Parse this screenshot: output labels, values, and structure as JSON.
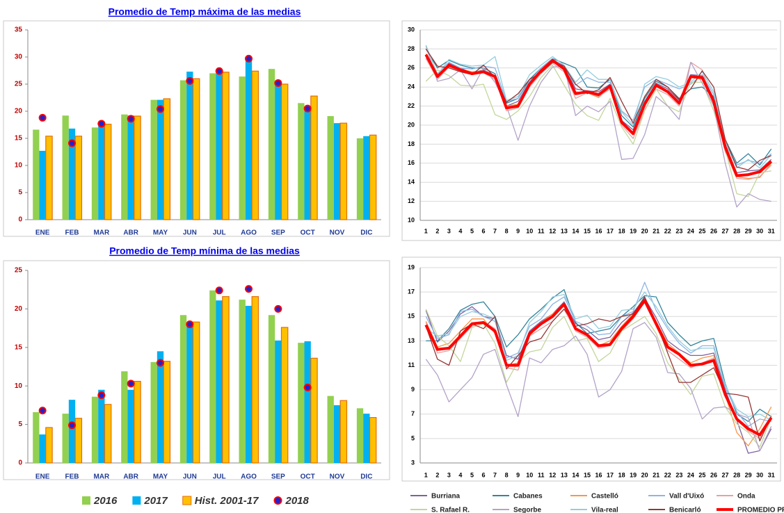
{
  "chart_data": [
    {
      "type": "bar",
      "title": "Promedio de Temp máxima de las medias",
      "categories": [
        "ENE",
        "FEB",
        "MAR",
        "ABR",
        "MAY",
        "JUN",
        "JUL",
        "AGO",
        "SEP",
        "OCT",
        "NOV",
        "DIC"
      ],
      "ylim": [
        0,
        35
      ],
      "yticks": [
        0,
        5,
        10,
        15,
        20,
        25,
        30,
        35
      ],
      "legend": true,
      "series": [
        {
          "name": "2016",
          "color": "#92d050",
          "values": [
            16.6,
            19.2,
            17.0,
            19.4,
            22.1,
            25.7,
            27.0,
            26.4,
            27.8,
            21.5,
            19.1,
            15.0
          ]
        },
        {
          "name": "2017",
          "color": "#00b0f0",
          "values": [
            12.7,
            16.8,
            17.6,
            19.2,
            22.1,
            27.3,
            27.5,
            29.5,
            25.5,
            20.7,
            17.8,
            15.4
          ]
        },
        {
          "name": "Hist. 2001-17",
          "color": "#ffc000",
          "edgecolor": "#e46c0a",
          "values": [
            15.4,
            15.4,
            17.6,
            19.1,
            22.3,
            26.0,
            27.2,
            27.4,
            25.0,
            22.8,
            17.8,
            15.6
          ]
        },
        {
          "name": "2018",
          "color": "#2222cc",
          "edgecolor": "#ff0000",
          "marker": "dot",
          "values": [
            18.8,
            14.1,
            17.7,
            18.6,
            20.4,
            25.6,
            27.4,
            29.7,
            25.2,
            20.5,
            null,
            null
          ]
        }
      ]
    },
    {
      "type": "bar",
      "title": "Promedio de Temp mínima de las medias",
      "categories": [
        "ENE",
        "FEB",
        "MAR",
        "ABR",
        "MAY",
        "JUN",
        "JUL",
        "AGO",
        "SEP",
        "OCT",
        "NOV",
        "DIC"
      ],
      "ylim": [
        0,
        25
      ],
      "yticks": [
        0,
        5,
        10,
        15,
        20,
        25
      ],
      "legend": false,
      "series": [
        {
          "name": "2016",
          "color": "#92d050",
          "values": [
            6.6,
            6.4,
            8.6,
            11.9,
            13.1,
            19.2,
            22.4,
            21.2,
            19.2,
            15.6,
            8.7,
            7.1
          ]
        },
        {
          "name": "2017",
          "color": "#00b0f0",
          "values": [
            3.7,
            8.2,
            9.5,
            9.5,
            14.5,
            18.3,
            21.1,
            20.4,
            15.9,
            15.8,
            7.5,
            6.4
          ]
        },
        {
          "name": "Hist. 2001-17",
          "color": "#ffc000",
          "edgecolor": "#e46c0a",
          "values": [
            4.6,
            5.8,
            7.6,
            10.6,
            13.2,
            18.3,
            21.6,
            21.6,
            17.6,
            13.6,
            8.1,
            5.9
          ]
        },
        {
          "name": "2018",
          "color": "#2222cc",
          "edgecolor": "#ff0000",
          "marker": "dot",
          "values": [
            6.8,
            4.9,
            8.8,
            10.3,
            13.0,
            18.0,
            22.4,
            22.6,
            20.0,
            9.8,
            null,
            null
          ]
        }
      ]
    },
    {
      "type": "line",
      "x": [
        1,
        2,
        3,
        4,
        5,
        6,
        7,
        8,
        9,
        10,
        11,
        12,
        13,
        14,
        15,
        16,
        17,
        18,
        19,
        20,
        21,
        22,
        23,
        24,
        25,
        26,
        27,
        28,
        29,
        30,
        31
      ],
      "ylim": [
        10,
        30
      ],
      "yticks": [
        10,
        12,
        14,
        16,
        18,
        20,
        22,
        24,
        26,
        28,
        30
      ],
      "grid": true,
      "legend": true,
      "series": [
        {
          "name": "Burriana",
          "color": "#7f5f9f",
          "values": [
            27.0,
            25.0,
            26.5,
            26.0,
            25.5,
            25.8,
            25.2,
            22.0,
            22.5,
            24.5,
            25.8,
            26.9,
            26.2,
            23.8,
            23.6,
            23.5,
            24.3,
            20.5,
            19.5,
            22.5,
            24.4,
            23.8,
            22.6,
            25.3,
            25.2,
            22.8,
            17.9,
            15.0,
            15.2,
            15.3,
            16.4
          ]
        },
        {
          "name": "Cabanes",
          "color": "#31849b",
          "values": [
            28.0,
            26.0,
            26.8,
            26.3,
            26.0,
            26.0,
            25.4,
            22.3,
            22.8,
            24.8,
            26.0,
            27.0,
            26.5,
            26.0,
            24.0,
            23.9,
            24.8,
            21.0,
            19.8,
            22.8,
            24.6,
            24.0,
            22.8,
            23.8,
            24.0,
            23.0,
            18.5,
            16.0,
            17.0,
            15.8,
            17.5
          ]
        },
        {
          "name": "Castelló",
          "color": "#f79646",
          "values": [
            27.5,
            25.2,
            26.2,
            25.9,
            25.6,
            25.7,
            25.2,
            22.0,
            22.2,
            24.4,
            25.6,
            26.6,
            26.0,
            23.5,
            23.4,
            22.9,
            24.0,
            20.2,
            19.0,
            22.0,
            24.0,
            23.5,
            22.2,
            25.0,
            24.8,
            22.4,
            17.5,
            14.6,
            14.4,
            14.5,
            16.0
          ]
        },
        {
          "name": "Vall d'Uixó",
          "color": "#8eb4e3",
          "values": [
            27.2,
            25.4,
            26.6,
            26.0,
            25.9,
            26.2,
            26.0,
            22.5,
            22.8,
            24.6,
            26.0,
            27.0,
            26.0,
            24.2,
            25.0,
            24.5,
            24.5,
            21.5,
            20.5,
            24.0,
            24.8,
            24.3,
            23.8,
            24.3,
            25.3,
            23.2,
            18.0,
            15.8,
            16.3,
            16.0,
            17.0
          ]
        },
        {
          "name": "Onda",
          "color": "#e6a0a0",
          "values": [
            27.0,
            24.8,
            26.1,
            25.7,
            25.5,
            25.5,
            24.8,
            21.5,
            21.8,
            24.0,
            25.4,
            26.5,
            25.6,
            22.8,
            23.4,
            23.0,
            23.8,
            20.0,
            18.6,
            21.6,
            23.8,
            23.2,
            22.0,
            26.6,
            25.8,
            22.0,
            17.2,
            14.4,
            14.3,
            14.6,
            15.8
          ]
        },
        {
          "name": "S. Rafael R.",
          "color": "#c3d69b",
          "values": [
            24.6,
            25.8,
            25.2,
            24.2,
            24.1,
            24.3,
            21.1,
            20.6,
            21.5,
            23.0,
            25.0,
            26.3,
            24.2,
            22.2,
            21.0,
            20.5,
            22.8,
            19.8,
            18.0,
            21.5,
            23.8,
            22.0,
            21.4,
            24.5,
            24.5,
            21.5,
            17.5,
            12.8,
            12.5,
            15.0,
            15.2
          ]
        },
        {
          "name": "Segorbe",
          "color": "#b3a2c7",
          "values": [
            28.3,
            24.6,
            24.9,
            25.8,
            23.8,
            26.0,
            24.5,
            22.0,
            18.4,
            22.0,
            24.5,
            26.1,
            26.2,
            21.0,
            22.0,
            21.4,
            22.5,
            16.4,
            16.5,
            19.0,
            23.0,
            22.0,
            20.6,
            26.6,
            24.4,
            22.0,
            16.0,
            11.4,
            12.8,
            12.2,
            12.0
          ]
        },
        {
          "name": "Vila-real",
          "color": "#93cddd",
          "values": [
            28.4,
            25.3,
            26.9,
            26.4,
            26.2,
            26.3,
            27.2,
            22.6,
            23.0,
            25.3,
            26.3,
            27.2,
            26.3,
            24.5,
            25.8,
            24.8,
            24.8,
            21.4,
            20.0,
            24.3,
            25.1,
            24.8,
            24.0,
            24.5,
            25.6,
            23.5,
            18.2,
            15.5,
            16.4,
            15.5,
            16.9
          ]
        },
        {
          "name": "Benicarló",
          "color": "#943634",
          "values": [
            28.0,
            26.2,
            26.0,
            25.6,
            25.3,
            26.3,
            25.0,
            22.4,
            23.3,
            24.8,
            25.5,
            26.6,
            26.2,
            24.3,
            23.3,
            23.7,
            25.0,
            22.5,
            20.2,
            23.0,
            24.8,
            24.0,
            22.7,
            23.8,
            25.7,
            24.0,
            18.5,
            15.6,
            15.3,
            16.3,
            16.8
          ]
        },
        {
          "name": "PROMEDIO PR.",
          "color": "#ff0000",
          "width": 4,
          "values": [
            27.4,
            25.1,
            26.3,
            25.8,
            25.4,
            25.6,
            25.1,
            21.8,
            22.0,
            24.3,
            25.7,
            26.8,
            25.9,
            23.3,
            23.5,
            23.2,
            24.1,
            20.3,
            19.1,
            22.2,
            24.2,
            23.5,
            22.3,
            25.1,
            25.0,
            22.5,
            17.7,
            14.7,
            14.8,
            15.1,
            16.2
          ]
        }
      ]
    },
    {
      "type": "line",
      "x": [
        1,
        2,
        3,
        4,
        5,
        6,
        7,
        8,
        9,
        10,
        11,
        12,
        13,
        14,
        15,
        16,
        17,
        18,
        19,
        20,
        21,
        22,
        23,
        24,
        25,
        26,
        27,
        28,
        29,
        30,
        31
      ],
      "ylim": [
        3,
        19
      ],
      "yticks": [
        3,
        5,
        7,
        9,
        11,
        13,
        15,
        17,
        19
      ],
      "grid": true,
      "legend": false,
      "series": [
        {
          "name": "Burriana",
          "color": "#7f5f9f",
          "values": [
            15.5,
            12.9,
            13.8,
            15.2,
            15.8,
            15.0,
            14.8,
            11.8,
            11.5,
            13.8,
            14.6,
            15.2,
            16.2,
            14.4,
            13.9,
            13.1,
            13.3,
            14.5,
            15.3,
            16.5,
            14.9,
            13.0,
            12.3,
            11.8,
            11.8,
            12.0,
            9.0,
            6.5,
            3.8,
            4.0,
            5.8
          ]
        },
        {
          "name": "Cabanes",
          "color": "#31849b",
          "values": [
            13.0,
            13.0,
            14.0,
            15.5,
            16.0,
            16.2,
            15.0,
            12.5,
            13.5,
            14.8,
            15.6,
            16.5,
            17.2,
            14.5,
            13.6,
            13.8,
            14.0,
            15.0,
            15.8,
            16.7,
            16.6,
            14.5,
            13.5,
            12.6,
            13.0,
            13.2,
            9.5,
            7.0,
            6.4,
            7.4,
            6.8
          ]
        },
        {
          "name": "Castelló",
          "color": "#f79646",
          "values": [
            14.6,
            12.5,
            12.8,
            13.8,
            14.8,
            14.8,
            13.6,
            11.0,
            11.2,
            13.4,
            14.5,
            15.2,
            16.0,
            14.0,
            13.6,
            12.6,
            13.0,
            14.2,
            15.2,
            16.4,
            14.6,
            12.8,
            12.0,
            11.2,
            11.6,
            11.8,
            8.6,
            5.5,
            4.4,
            5.8,
            7.6
          ]
        },
        {
          "name": "Vall d'Uixó",
          "color": "#8eb4e3",
          "values": [
            15.0,
            13.2,
            13.5,
            15.4,
            15.6,
            15.0,
            14.6,
            11.6,
            12.0,
            14.2,
            14.8,
            16.0,
            16.6,
            14.6,
            14.2,
            13.5,
            13.6,
            15.0,
            15.4,
            17.8,
            15.5,
            14.0,
            12.8,
            12.0,
            12.6,
            12.6,
            9.2,
            7.2,
            6.0,
            6.6,
            6.4
          ]
        },
        {
          "name": "Onda",
          "color": "#e6a0a0",
          "values": [
            14.5,
            12.0,
            12.2,
            13.2,
            14.2,
            14.6,
            14.0,
            10.8,
            10.6,
            13.4,
            14.0,
            14.6,
            15.6,
            13.8,
            13.3,
            12.4,
            12.6,
            13.8,
            14.8,
            16.2,
            14.2,
            12.2,
            11.5,
            10.8,
            11.2,
            11.6,
            8.6,
            6.6,
            5.6,
            5.0,
            6.9
          ]
        },
        {
          "name": "S. Rafael R.",
          "color": "#c3d69b",
          "values": [
            15.6,
            13.4,
            12.6,
            11.3,
            14.1,
            14.4,
            12.8,
            9.6,
            11.3,
            12.1,
            12.3,
            14.1,
            15.0,
            13.0,
            13.2,
            11.3,
            12.0,
            13.8,
            14.4,
            15.0,
            13.6,
            11.2,
            9.9,
            8.6,
            10.1,
            10.3,
            7.6,
            6.2,
            5.5,
            4.3,
            6.7
          ]
        },
        {
          "name": "Segorbe",
          "color": "#b3a2c7",
          "values": [
            11.5,
            10.2,
            8.0,
            9.0,
            10.0,
            11.9,
            12.3,
            9.4,
            6.8,
            11.6,
            11.2,
            12.3,
            12.6,
            13.4,
            11.9,
            8.4,
            9.0,
            10.5,
            14.0,
            14.5,
            13.3,
            10.4,
            10.3,
            9.1,
            6.6,
            7.5,
            7.6,
            7.0,
            6.7,
            4.0,
            6.0
          ]
        },
        {
          "name": "Vila-real",
          "color": "#93cddd",
          "values": [
            14.0,
            13.4,
            13.6,
            15.0,
            15.4,
            15.2,
            14.8,
            11.4,
            11.8,
            14.5,
            15.4,
            16.6,
            16.8,
            14.8,
            15.1,
            14.0,
            14.2,
            15.5,
            15.6,
            17.0,
            15.8,
            14.2,
            13.0,
            12.2,
            12.4,
            12.4,
            9.4,
            7.4,
            6.8,
            7.0,
            6.5
          ]
        },
        {
          "name": "Benicarló",
          "color": "#943634",
          "values": [
            14.2,
            11.5,
            11.0,
            13.8,
            14.4,
            14.0,
            15.0,
            10.7,
            11.8,
            12.9,
            13.2,
            14.6,
            15.6,
            14.2,
            14.4,
            14.8,
            14.6,
            15.0,
            15.2,
            16.6,
            14.5,
            12.0,
            9.6,
            9.6,
            10.2,
            10.8,
            8.7,
            8.6,
            8.4,
            4.8,
            6.8
          ]
        },
        {
          "name": "PROMEDIO PR.",
          "color": "#ff0000",
          "width": 4,
          "values": [
            14.3,
            12.3,
            12.4,
            13.4,
            14.4,
            14.5,
            13.8,
            11.0,
            11.0,
            13.6,
            14.4,
            15.0,
            16.0,
            14.0,
            13.5,
            12.6,
            12.7,
            14.0,
            15.0,
            16.3,
            14.4,
            12.5,
            11.9,
            11.0,
            11.1,
            11.4,
            8.6,
            6.6,
            5.8,
            5.3,
            6.7
          ]
        }
      ]
    }
  ]
}
